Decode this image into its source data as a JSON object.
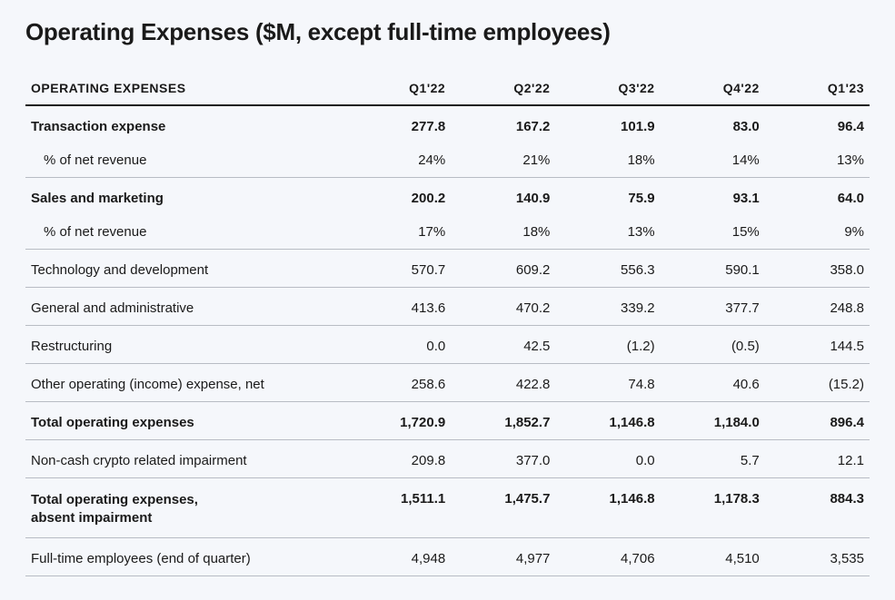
{
  "title": "Operating Expenses ($M, except full-time employees)",
  "table": {
    "header_label": "OPERATING EXPENSES",
    "columns": [
      "Q1'22",
      "Q2'22",
      "Q3'22",
      "Q4'22",
      "Q1'23"
    ],
    "rows": [
      {
        "label": "Transaction expense",
        "values": [
          "277.8",
          "167.2",
          "101.9",
          "83.0",
          "96.4"
        ],
        "bold": true,
        "no_border": true,
        "section_top": true
      },
      {
        "label": "% of net revenue",
        "values": [
          "24%",
          "21%",
          "18%",
          "14%",
          "13%"
        ],
        "indent": true
      },
      {
        "label": "Sales and marketing",
        "values": [
          "200.2",
          "140.9",
          "75.9",
          "93.1",
          "64.0"
        ],
        "bold": true,
        "no_border": true,
        "section_top": true
      },
      {
        "label": "% of net revenue",
        "values": [
          "17%",
          "18%",
          "13%",
          "15%",
          "9%"
        ],
        "indent": true
      },
      {
        "label": "Technology and development",
        "values": [
          "570.7",
          "609.2",
          "556.3",
          "590.1",
          "358.0"
        ],
        "section_top": true
      },
      {
        "label": "General and administrative",
        "values": [
          "413.6",
          "470.2",
          "339.2",
          "377.7",
          "248.8"
        ],
        "section_top": true
      },
      {
        "label": "Restructuring",
        "values": [
          "0.0",
          "42.5",
          "(1.2)",
          "(0.5)",
          "144.5"
        ],
        "section_top": true
      },
      {
        "label": "Other operating (income) expense, net",
        "values": [
          "258.6",
          "422.8",
          "74.8",
          "40.6",
          "(15.2)"
        ],
        "section_top": true
      },
      {
        "label": "Total operating expenses",
        "values": [
          "1,720.9",
          "1,852.7",
          "1,146.8",
          "1,184.0",
          "896.4"
        ],
        "bold": true,
        "section_top": true
      },
      {
        "label": "Non-cash crypto related impairment",
        "values": [
          "209.8",
          "377.0",
          "0.0",
          "5.7",
          "12.1"
        ],
        "section_top": true
      },
      {
        "label": "Total operating expenses,\nabsent impairment",
        "values": [
          "1,511.1",
          "1,475.7",
          "1,146.8",
          "1,178.3",
          "884.3"
        ],
        "bold": true,
        "multiline": true,
        "section_top": true
      },
      {
        "label": "Full-time employees (end of quarter)",
        "values": [
          "4,948",
          "4,977",
          "4,706",
          "4,510",
          "3,535"
        ],
        "section_top": true
      }
    ]
  },
  "style": {
    "background_color": "#f5f7fb",
    "text_color": "#1a1a1a",
    "header_border_color": "#1a1a1a",
    "row_border_color": "#b8bcc4",
    "title_fontsize": 26,
    "body_fontsize": 15,
    "header_fontsize": 14
  }
}
